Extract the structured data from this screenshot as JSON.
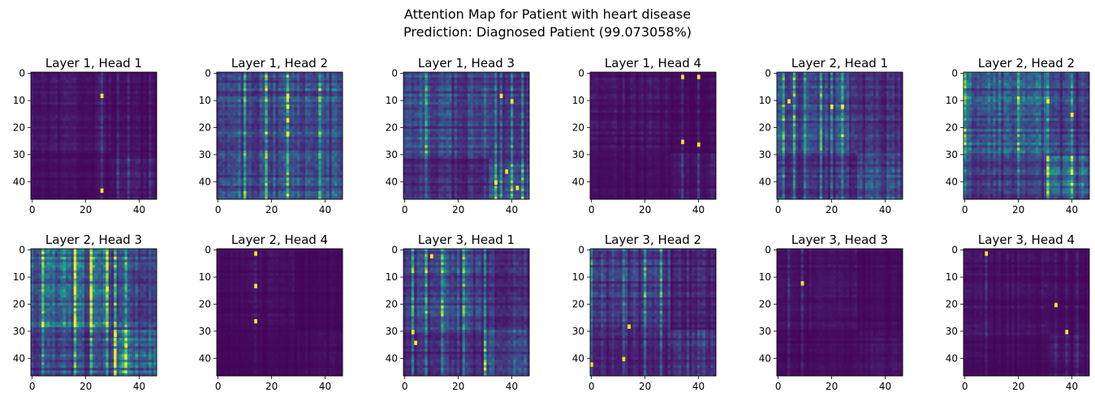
{
  "figure": {
    "title_line1": "Attention Map for Patient with heart disease",
    "title_line2": " Prediction: Diagnosed Patient (99.073058%)"
  },
  "chart_data": {
    "type": "heatmap",
    "colormap": "viridis",
    "matrix_size": [
      47,
      47
    ],
    "xlim": [
      -0.5,
      46.5
    ],
    "ylim": [
      46.5,
      -0.5
    ],
    "xticks": [
      0,
      20,
      40
    ],
    "yticks": [
      0,
      10,
      20,
      30,
      40
    ],
    "grid": false,
    "panels": [
      {
        "title": "Layer 1, Head 1",
        "hot_cols": [
          26,
          32,
          36,
          44
        ],
        "bright": [
          [
            26,
            8
          ],
          [
            26,
            43
          ]
        ],
        "base": 0.06,
        "block_split": 30
      },
      {
        "title": "Layer 1, Head 2",
        "hot_cols": [
          26,
          10,
          18,
          38
        ],
        "bright": [
          [
            26,
            8
          ],
          [
            26,
            12
          ],
          [
            26,
            17
          ],
          [
            26,
            22
          ]
        ],
        "base": 0.25,
        "block_split": 0
      },
      {
        "title": "Layer 1, Head 3",
        "hot_cols": [
          8,
          34,
          36,
          40,
          44
        ],
        "bright": [
          [
            36,
            8
          ],
          [
            40,
            10
          ],
          [
            38,
            36
          ],
          [
            42,
            42
          ],
          [
            34,
            40
          ]
        ],
        "base": 0.2,
        "block_split": 32
      },
      {
        "title": "Layer 1, Head 4",
        "hot_cols": [
          34,
          40
        ],
        "bright": [
          [
            34,
            1
          ],
          [
            40,
            1
          ],
          [
            34,
            25
          ],
          [
            40,
            26
          ]
        ],
        "base": 0.05,
        "block_split": 30
      },
      {
        "title": "Layer 2, Head 1",
        "hot_cols": [
          2,
          6,
          10,
          16,
          20,
          24
        ],
        "bright": [
          [
            4,
            10
          ],
          [
            20,
            12
          ],
          [
            24,
            12
          ]
        ],
        "base": 0.2,
        "block_split": 30
      },
      {
        "title": "Layer 2, Head 2",
        "hot_cols": [
          0,
          20,
          31,
          40
        ],
        "bright": [
          [
            31,
            10
          ],
          [
            40,
            15
          ]
        ],
        "base": 0.25,
        "block_split": 31
      },
      {
        "title": "Layer 2, Head 3",
        "hot_cols": [
          4,
          16,
          22,
          28,
          31,
          35
        ],
        "bright": [
          [
            31,
            31
          ],
          [
            35,
            35
          ],
          [
            28,
            14
          ]
        ],
        "base": 0.3,
        "block_split": 30
      },
      {
        "title": "Layer 2, Head 4",
        "hot_cols": [
          14
        ],
        "bright": [
          [
            14,
            1
          ],
          [
            14,
            13
          ],
          [
            14,
            26
          ]
        ],
        "base": 0.03,
        "block_split": 30
      },
      {
        "title": "Layer 3, Head 1",
        "hot_cols": [
          3,
          8,
          14,
          22,
          30
        ],
        "bright": [
          [
            3,
            30
          ],
          [
            4,
            34
          ],
          [
            10,
            2
          ]
        ],
        "base": 0.2,
        "block_split": 30
      },
      {
        "title": "Layer 3, Head 2",
        "hot_cols": [
          0,
          12,
          20,
          26
        ],
        "bright": [
          [
            14,
            28
          ],
          [
            0,
            42
          ],
          [
            12,
            40
          ]
        ],
        "base": 0.15,
        "block_split": 30
      },
      {
        "title": "Layer 3, Head 3",
        "hot_cols": [
          4,
          9
        ],
        "bright": [
          [
            9,
            12
          ]
        ],
        "base": 0.04,
        "block_split": 30
      },
      {
        "title": "Layer 3, Head 4",
        "hot_cols": [
          8,
          34,
          38,
          42
        ],
        "bright": [
          [
            8,
            1
          ],
          [
            38,
            30
          ],
          [
            34,
            20
          ]
        ],
        "base": 0.04,
        "block_split": 32
      }
    ]
  }
}
